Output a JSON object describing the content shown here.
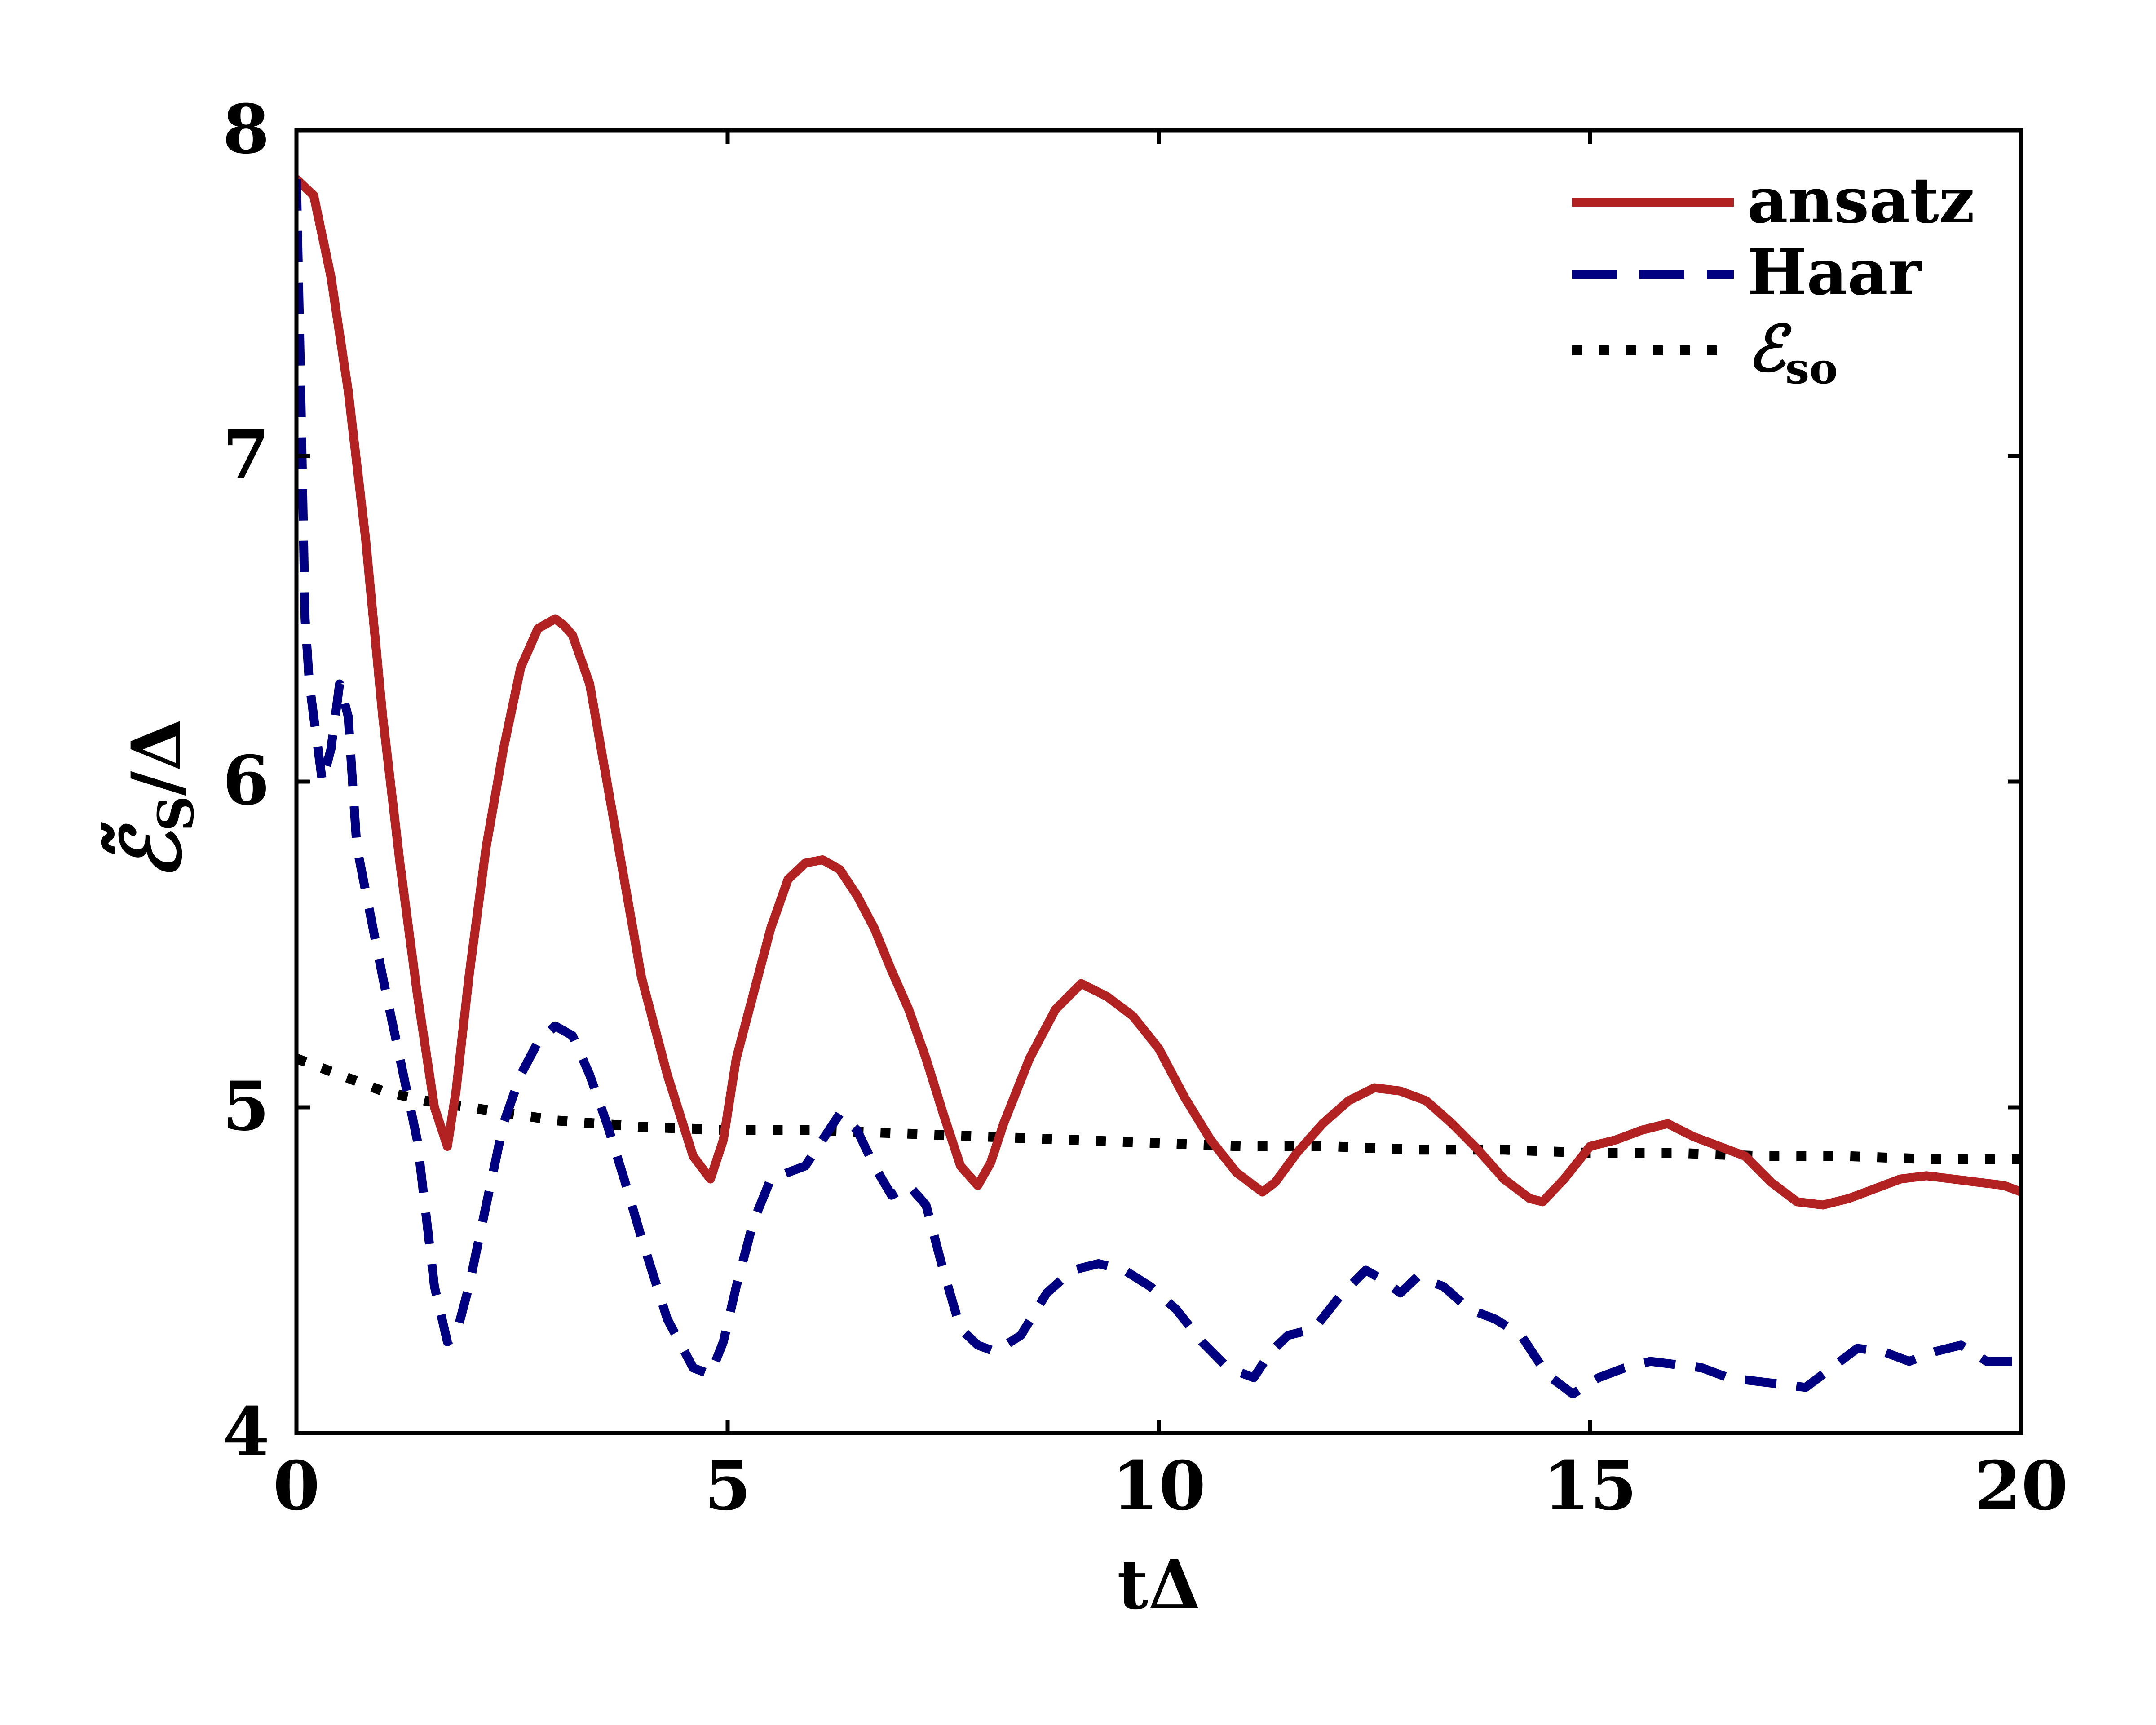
{
  "chart_data": {
    "type": "line",
    "xlabel": "tΔ",
    "ylabel_main": "ℰ̃",
    "ylabel_sub": "S",
    "ylabel_tail": "/Δ",
    "xlim": [
      0,
      20
    ],
    "ylim": [
      4,
      8
    ],
    "xticks": [
      0,
      5,
      10,
      15,
      20
    ],
    "yticks": [
      4,
      5,
      6,
      7,
      8
    ],
    "legend_position": "top-right",
    "series": [
      {
        "name": "ansatz",
        "color": "#b22222",
        "style": "solid",
        "x": [
          0,
          0.2,
          0.4,
          0.6,
          0.8,
          1.0,
          1.2,
          1.4,
          1.6,
          1.75,
          1.85,
          2.0,
          2.2,
          2.4,
          2.6,
          2.8,
          3.0,
          3.1,
          3.2,
          3.4,
          3.6,
          3.8,
          4.0,
          4.3,
          4.6,
          4.8,
          4.95,
          5.1,
          5.3,
          5.5,
          5.7,
          5.9,
          6.1,
          6.3,
          6.5,
          6.7,
          6.9,
          7.1,
          7.3,
          7.5,
          7.7,
          7.9,
          8.05,
          8.2,
          8.5,
          8.8,
          9.1,
          9.4,
          9.7,
          10.0,
          10.3,
          10.6,
          10.9,
          11.2,
          11.35,
          11.6,
          11.9,
          12.2,
          12.5,
          12.8,
          13.1,
          13.4,
          13.7,
          14.0,
          14.3,
          14.45,
          14.7,
          15.0,
          15.3,
          15.6,
          15.9,
          16.2,
          16.5,
          16.8,
          17.1,
          17.4,
          17.7,
          18.0,
          18.3,
          18.6,
          18.9,
          19.2,
          19.5,
          19.8,
          20.0
        ],
        "y": [
          7.85,
          7.8,
          7.55,
          7.2,
          6.75,
          6.2,
          5.75,
          5.35,
          5.0,
          4.88,
          5.05,
          5.4,
          5.8,
          6.1,
          6.35,
          6.47,
          6.5,
          6.48,
          6.45,
          6.3,
          6.0,
          5.7,
          5.4,
          5.1,
          4.85,
          4.78,
          4.9,
          5.15,
          5.35,
          5.55,
          5.7,
          5.75,
          5.76,
          5.73,
          5.65,
          5.55,
          5.42,
          5.3,
          5.15,
          4.98,
          4.82,
          4.76,
          4.83,
          4.95,
          5.15,
          5.3,
          5.38,
          5.34,
          5.28,
          5.18,
          5.03,
          4.9,
          4.8,
          4.74,
          4.77,
          4.86,
          4.95,
          5.02,
          5.06,
          5.05,
          5.02,
          4.95,
          4.87,
          4.78,
          4.72,
          4.71,
          4.78,
          4.88,
          4.9,
          4.93,
          4.95,
          4.91,
          4.88,
          4.85,
          4.77,
          4.71,
          4.7,
          4.72,
          4.75,
          4.78,
          4.79,
          4.78,
          4.77,
          4.76,
          4.74
        ]
      },
      {
        "name": "Haar",
        "color": "#000080",
        "style": "dashed",
        "x": [
          0,
          0.05,
          0.1,
          0.15,
          0.2,
          0.25,
          0.3,
          0.4,
          0.5,
          0.6,
          0.7,
          0.85,
          1.0,
          1.2,
          1.4,
          1.6,
          1.75,
          1.85,
          2.0,
          2.2,
          2.4,
          2.6,
          2.8,
          3.0,
          3.2,
          3.4,
          3.6,
          3.8,
          4.0,
          4.3,
          4.6,
          4.8,
          4.95,
          5.1,
          5.3,
          5.5,
          5.7,
          5.9,
          6.1,
          6.3,
          6.5,
          6.7,
          6.9,
          7.1,
          7.3,
          7.5,
          7.7,
          7.9,
          8.1,
          8.4,
          8.7,
          9.0,
          9.3,
          9.6,
          9.9,
          10.2,
          10.5,
          10.8,
          11.1,
          11.3,
          11.5,
          11.8,
          12.1,
          12.4,
          12.6,
          12.8,
          13.0,
          13.3,
          13.6,
          13.9,
          14.2,
          14.5,
          14.8,
          15.1,
          15.4,
          15.7,
          16.0,
          16.3,
          16.6,
          16.9,
          17.2,
          17.5,
          17.8,
          18.1,
          18.4,
          18.7,
          19.0,
          19.3,
          19.6,
          19.9,
          20.0
        ],
        "y": [
          7.85,
          7.2,
          6.5,
          6.3,
          6.2,
          6.1,
          6.0,
          6.1,
          6.3,
          6.2,
          5.8,
          5.6,
          5.4,
          5.15,
          4.9,
          4.45,
          4.28,
          4.3,
          4.45,
          4.7,
          4.95,
          5.1,
          5.2,
          5.25,
          5.22,
          5.1,
          4.95,
          4.78,
          4.6,
          4.35,
          4.2,
          4.18,
          4.28,
          4.45,
          4.65,
          4.78,
          4.8,
          4.82,
          4.9,
          4.98,
          4.93,
          4.82,
          4.73,
          4.76,
          4.7,
          4.5,
          4.32,
          4.27,
          4.25,
          4.3,
          4.43,
          4.5,
          4.52,
          4.5,
          4.45,
          4.38,
          4.28,
          4.2,
          4.17,
          4.25,
          4.3,
          4.32,
          4.42,
          4.5,
          4.47,
          4.43,
          4.48,
          4.45,
          4.38,
          4.35,
          4.3,
          4.18,
          4.12,
          4.17,
          4.2,
          4.22,
          4.21,
          4.2,
          4.17,
          4.16,
          4.15,
          4.14,
          4.2,
          4.26,
          4.25,
          4.22,
          4.25,
          4.27,
          4.22,
          4.22,
          4.27
        ]
      },
      {
        "name_main": "ℰ",
        "name_sub": "so",
        "color": "#000000",
        "style": "dotted",
        "x": [
          0,
          0.5,
          1.0,
          1.5,
          2.0,
          3.0,
          4.0,
          5.0,
          6.0,
          7.0,
          8.0,
          9.0,
          10.0,
          11.0,
          12.0,
          13.0,
          14.0,
          15.0,
          16.0,
          17.0,
          18.0,
          19.0,
          20.0
        ],
        "y": [
          5.15,
          5.1,
          5.05,
          5.02,
          5.0,
          4.96,
          4.94,
          4.93,
          4.93,
          4.92,
          4.91,
          4.9,
          4.89,
          4.88,
          4.88,
          4.87,
          4.87,
          4.86,
          4.86,
          4.85,
          4.85,
          4.84,
          4.84
        ]
      }
    ]
  }
}
